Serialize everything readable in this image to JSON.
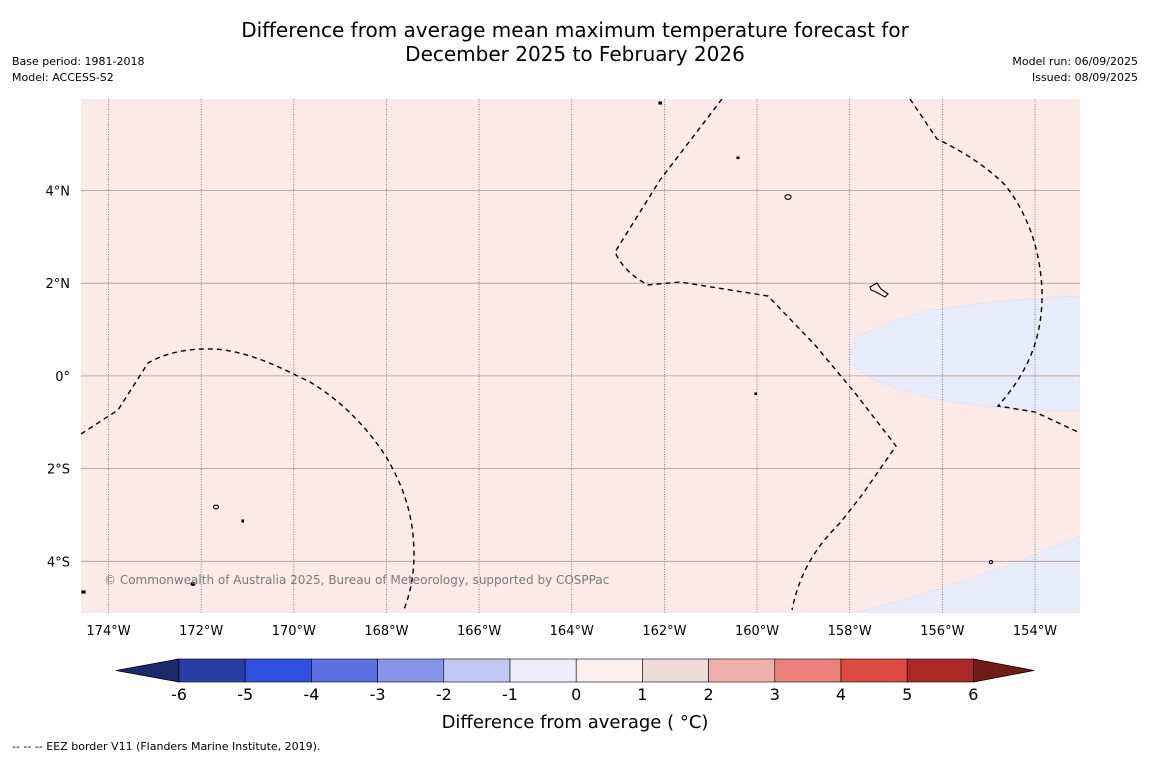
{
  "title_line1": "Difference from average mean maximum temperature forecast for",
  "title_line2": "December 2025 to February 2026",
  "base_period": "Base period: 1981-2018",
  "model": "Model: ACCESS-S2",
  "model_run": "Model run: 06/09/2025",
  "issued": "Issued: 08/09/2025",
  "copyright": "© Commonwealth of Australia 2025, Bureau of Meteorology, supported by COSPPac",
  "footer": "--  --  -- EEZ border V11 (Flanders Marine Institute, 2019).",
  "map": {
    "lon_labels": [
      "174°W",
      "172°W",
      "170°W",
      "168°W",
      "166°W",
      "164°W",
      "162°W",
      "160°W",
      "158°W",
      "156°W",
      "154°W"
    ],
    "lat_labels": [
      "4°N",
      "2°N",
      "0°",
      "2°S",
      "4°S"
    ],
    "region_colors": {
      "background": "#fbeae8",
      "cool": "#e8ebfa"
    }
  },
  "colorbar": {
    "title": "Difference from average ( °C)",
    "ticks": [
      "-6",
      "-5",
      "-4",
      "-3",
      "-2",
      "-1",
      "0",
      "1",
      "2",
      "3",
      "4",
      "5",
      "6"
    ],
    "colors": [
      "#273fa4",
      "#3050e0",
      "#5a6fe2",
      "#8795e8",
      "#c2c7f4",
      "#eceefc",
      "#fdefed",
      "#eedad9",
      "#efafab",
      "#ea827a",
      "#dd4a41",
      "#ac2a26"
    ],
    "under_color": "#1c2a6c",
    "over_color": "#731b17"
  }
}
